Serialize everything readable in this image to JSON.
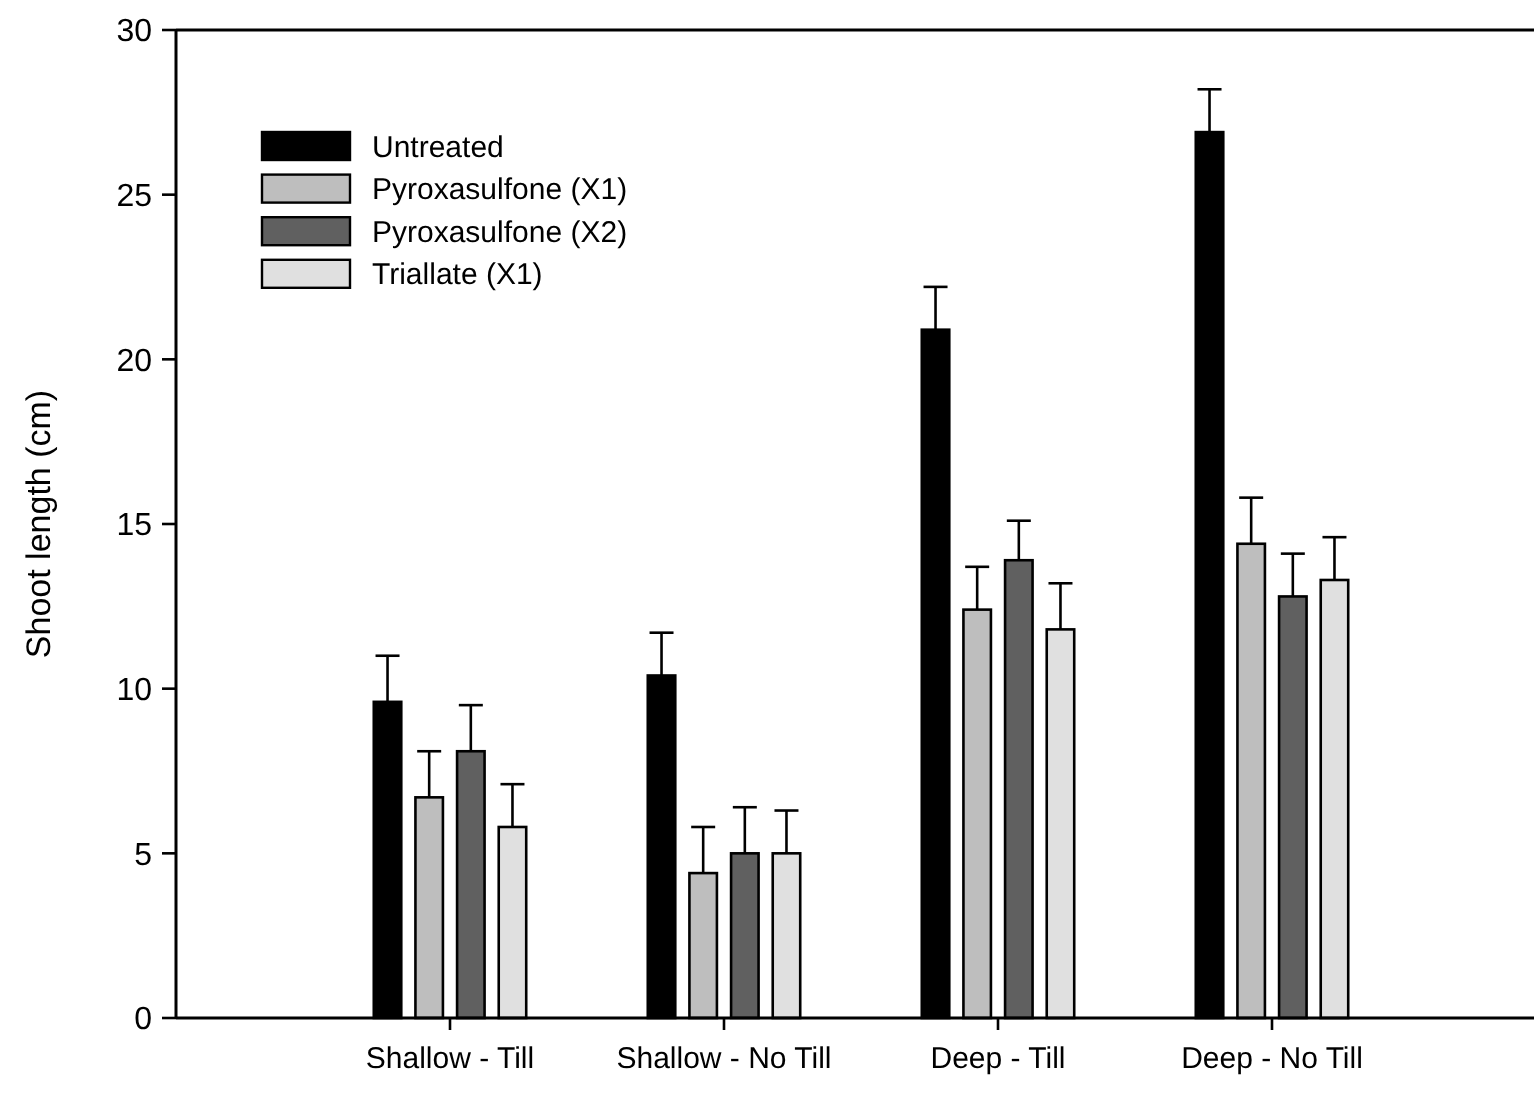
{
  "chart_data": {
    "type": "bar",
    "ylabel": "Shoot length (cm)",
    "categories": [
      "Shallow - Till",
      "Shallow - No Till",
      "Deep - Till",
      "Deep - No Till"
    ],
    "series": [
      {
        "name": "Untreated",
        "color": "#000000",
        "values": [
          9.6,
          10.4,
          20.9,
          26.9
        ],
        "errors": [
          1.4,
          1.3,
          1.3,
          1.3
        ]
      },
      {
        "name": "Pyroxasulfone (X1)",
        "color": "#bebebe",
        "values": [
          6.7,
          4.4,
          12.4,
          14.4
        ],
        "errors": [
          1.4,
          1.4,
          1.3,
          1.4
        ]
      },
      {
        "name": "Pyroxasulfone (X2)",
        "color": "#606060",
        "values": [
          8.1,
          5.0,
          13.9,
          12.8
        ],
        "errors": [
          1.4,
          1.4,
          1.2,
          1.3
        ]
      },
      {
        "name": "Triallate (X1)",
        "color": "#e0e0e0",
        "values": [
          5.8,
          5.0,
          11.8,
          13.3
        ],
        "errors": [
          1.3,
          1.3,
          1.4,
          1.3
        ]
      }
    ],
    "ylim": [
      0,
      30
    ],
    "yticks": [
      0,
      5,
      10,
      15,
      20,
      25,
      30
    ],
    "grid": false,
    "legend": "top left"
  }
}
